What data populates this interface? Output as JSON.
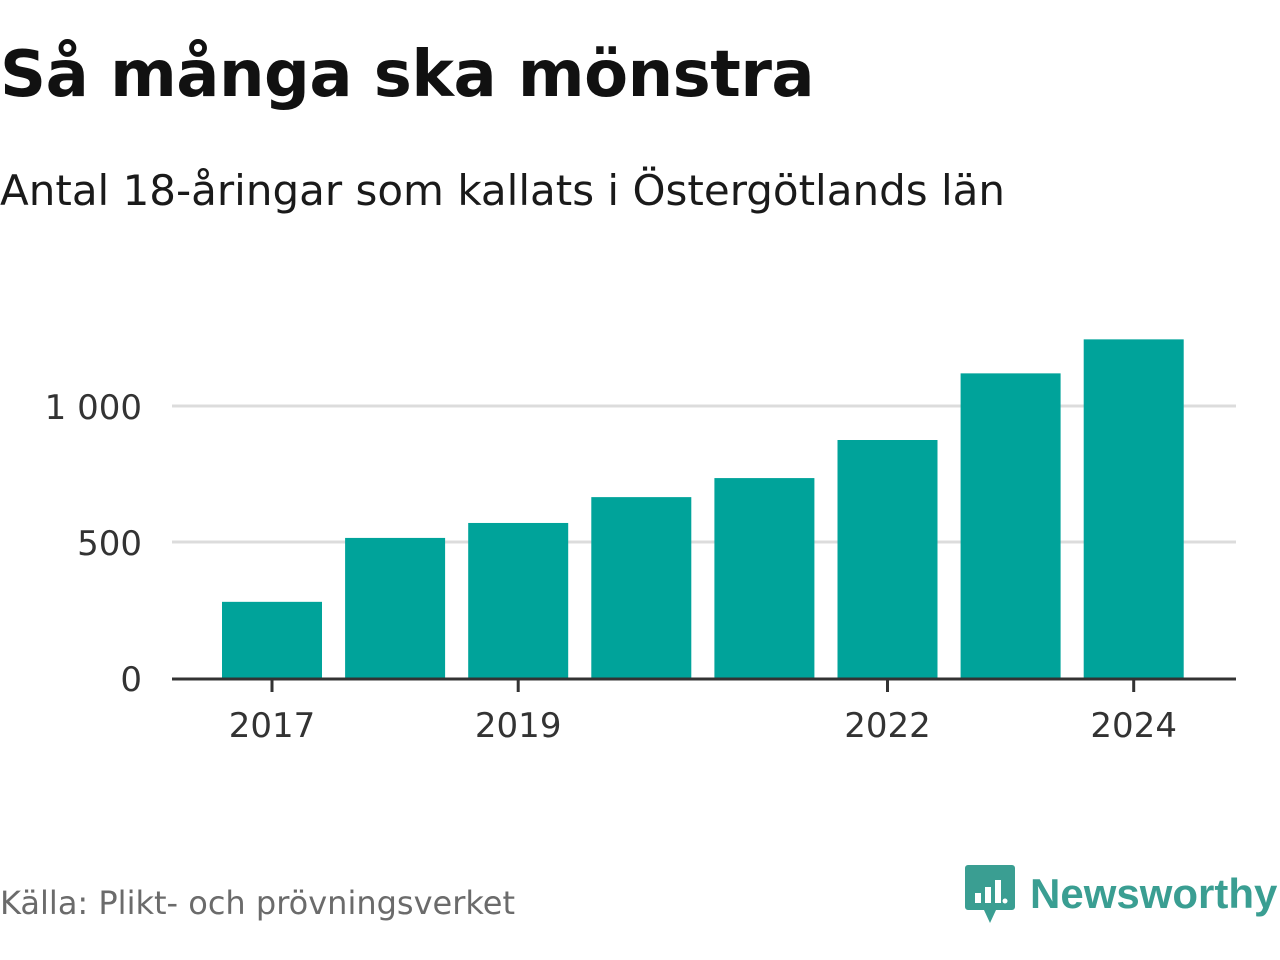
{
  "chart_data": {
    "type": "bar",
    "title": "Så många ska mönstra",
    "subtitle": "Antal 18-åringar som kallats i Östergötlands län",
    "categories": [
      "2017",
      "2018",
      "2019",
      "2020",
      "2021",
      "2022",
      "2023",
      "2024"
    ],
    "values": [
      280,
      515,
      570,
      665,
      735,
      875,
      1120,
      1245
    ],
    "x_tick_labels": [
      "2017",
      "2019",
      "2022",
      "2024"
    ],
    "y_ticks": [
      0,
      500,
      1000
    ],
    "y_tick_labels": [
      "0",
      "500",
      "1 000"
    ],
    "ylim": [
      0,
      1300
    ],
    "xlabel": "",
    "ylabel": "",
    "grid": true,
    "bar_color": "#00a39a",
    "grid_color": "#dcdcdc",
    "axis_color": "#333333"
  },
  "footer": {
    "source": "Källa: Plikt- och prövningsverket",
    "brand": "Newsworthy",
    "brand_color": "#3a9e92",
    "logo_icon": "bar-chart-speech-bubble-icon"
  }
}
